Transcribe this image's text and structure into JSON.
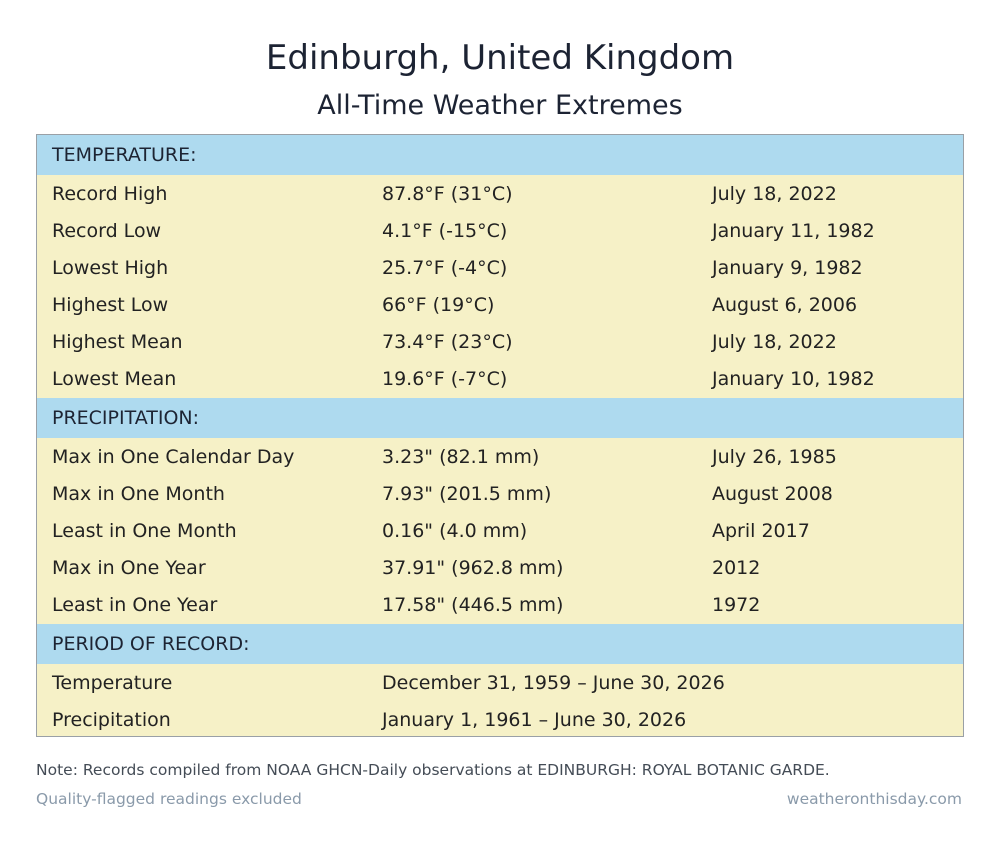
{
  "title": "Edinburgh, United Kingdom",
  "subtitle": "All-Time Weather Extremes",
  "sections": {
    "temperature": {
      "header": "TEMPERATURE:",
      "rows": [
        {
          "label": "Record High",
          "value": "87.8°F (31°C)",
          "date": "July 18, 2022"
        },
        {
          "label": "Record Low",
          "value": "4.1°F (-15°C)",
          "date": "January 11, 1982"
        },
        {
          "label": "Lowest High",
          "value": "25.7°F (-4°C)",
          "date": "January 9, 1982"
        },
        {
          "label": "Highest Low",
          "value": "66°F (19°C)",
          "date": "August 6, 2006"
        },
        {
          "label": "Highest Mean",
          "value": "73.4°F (23°C)",
          "date": "July 18, 2022"
        },
        {
          "label": "Lowest Mean",
          "value": "19.6°F (-7°C)",
          "date": "January 10, 1982"
        }
      ]
    },
    "precipitation": {
      "header": "PRECIPITATION:",
      "rows": [
        {
          "label": "Max in One Calendar Day",
          "value": "3.23\" (82.1 mm)",
          "date": "July 26, 1985"
        },
        {
          "label": "Max in One Month",
          "value": "7.93\" (201.5 mm)",
          "date": "August 2008"
        },
        {
          "label": "Least in One Month",
          "value": "0.16\" (4.0 mm)",
          "date": "April 2017"
        },
        {
          "label": "Max in One Year",
          "value": "37.91\" (962.8 mm)",
          "date": "2012"
        },
        {
          "label": "Least in One Year",
          "value": "17.58\" (446.5 mm)",
          "date": "1972"
        }
      ]
    },
    "period": {
      "header": "PERIOD OF RECORD:",
      "rows": [
        {
          "label": "Temperature",
          "value": "December 31, 1959 – June 30, 2026"
        },
        {
          "label": "Precipitation",
          "value": "January 1, 1961 – June 30, 2026"
        }
      ]
    }
  },
  "note": "Note: Records compiled from NOAA GHCN-Daily observations at EDINBURGH: ROYAL BOTANIC GARDE.",
  "footer": {
    "left": "Quality-flagged readings excluded",
    "right": "weatheronthisday.com"
  },
  "colors": {
    "header_bg": "#aedaef",
    "row_bg": "#f6f1c7",
    "border": "#9aa0a6"
  }
}
